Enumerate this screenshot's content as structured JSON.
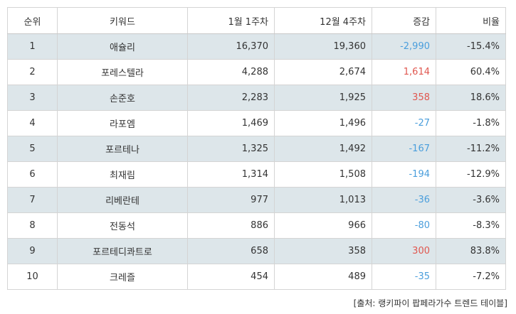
{
  "table": {
    "headers": {
      "rank": "순위",
      "keyword": "키워드",
      "week1": "1월 1주차",
      "week2": "12월 4주차",
      "diff": "증감",
      "ratio": "비율"
    },
    "rows": [
      {
        "rank": "1",
        "keyword": "애슐리",
        "week1": "16,370",
        "week2": "19,360",
        "diff": "-2,990",
        "diff_sign": "neg",
        "ratio": "-15.4%"
      },
      {
        "rank": "2",
        "keyword": "포레스텔라",
        "week1": "4,288",
        "week2": "2,674",
        "diff": "1,614",
        "diff_sign": "pos",
        "ratio": "60.4%"
      },
      {
        "rank": "3",
        "keyword": "손준호",
        "week1": "2,283",
        "week2": "1,925",
        "diff": "358",
        "diff_sign": "pos",
        "ratio": "18.6%"
      },
      {
        "rank": "4",
        "keyword": "라포엠",
        "week1": "1,469",
        "week2": "1,496",
        "diff": "-27",
        "diff_sign": "neg",
        "ratio": "-1.8%"
      },
      {
        "rank": "5",
        "keyword": "포르테나",
        "week1": "1,325",
        "week2": "1,492",
        "diff": "-167",
        "diff_sign": "neg",
        "ratio": "-11.2%"
      },
      {
        "rank": "6",
        "keyword": "최재림",
        "week1": "1,314",
        "week2": "1,508",
        "diff": "-194",
        "diff_sign": "neg",
        "ratio": "-12.9%"
      },
      {
        "rank": "7",
        "keyword": "리베란테",
        "week1": "977",
        "week2": "1,013",
        "diff": "-36",
        "diff_sign": "neg",
        "ratio": "-3.6%"
      },
      {
        "rank": "8",
        "keyword": "전동석",
        "week1": "886",
        "week2": "966",
        "diff": "-80",
        "diff_sign": "neg",
        "ratio": "-8.3%"
      },
      {
        "rank": "9",
        "keyword": "포르테디콰트로",
        "week1": "658",
        "week2": "358",
        "diff": "300",
        "diff_sign": "pos",
        "ratio": "83.8%"
      },
      {
        "rank": "10",
        "keyword": "크레즐",
        "week1": "454",
        "week2": "489",
        "diff": "-35",
        "diff_sign": "neg",
        "ratio": "-7.2%"
      }
    ]
  },
  "source": "[출처: 랭키파이 팝페라가수 트렌드 테이블]",
  "colors": {
    "row_stripe": "#dde6ea",
    "negative": "#4a9edc",
    "positive": "#e0574f",
    "border": "#d4d4d4"
  }
}
